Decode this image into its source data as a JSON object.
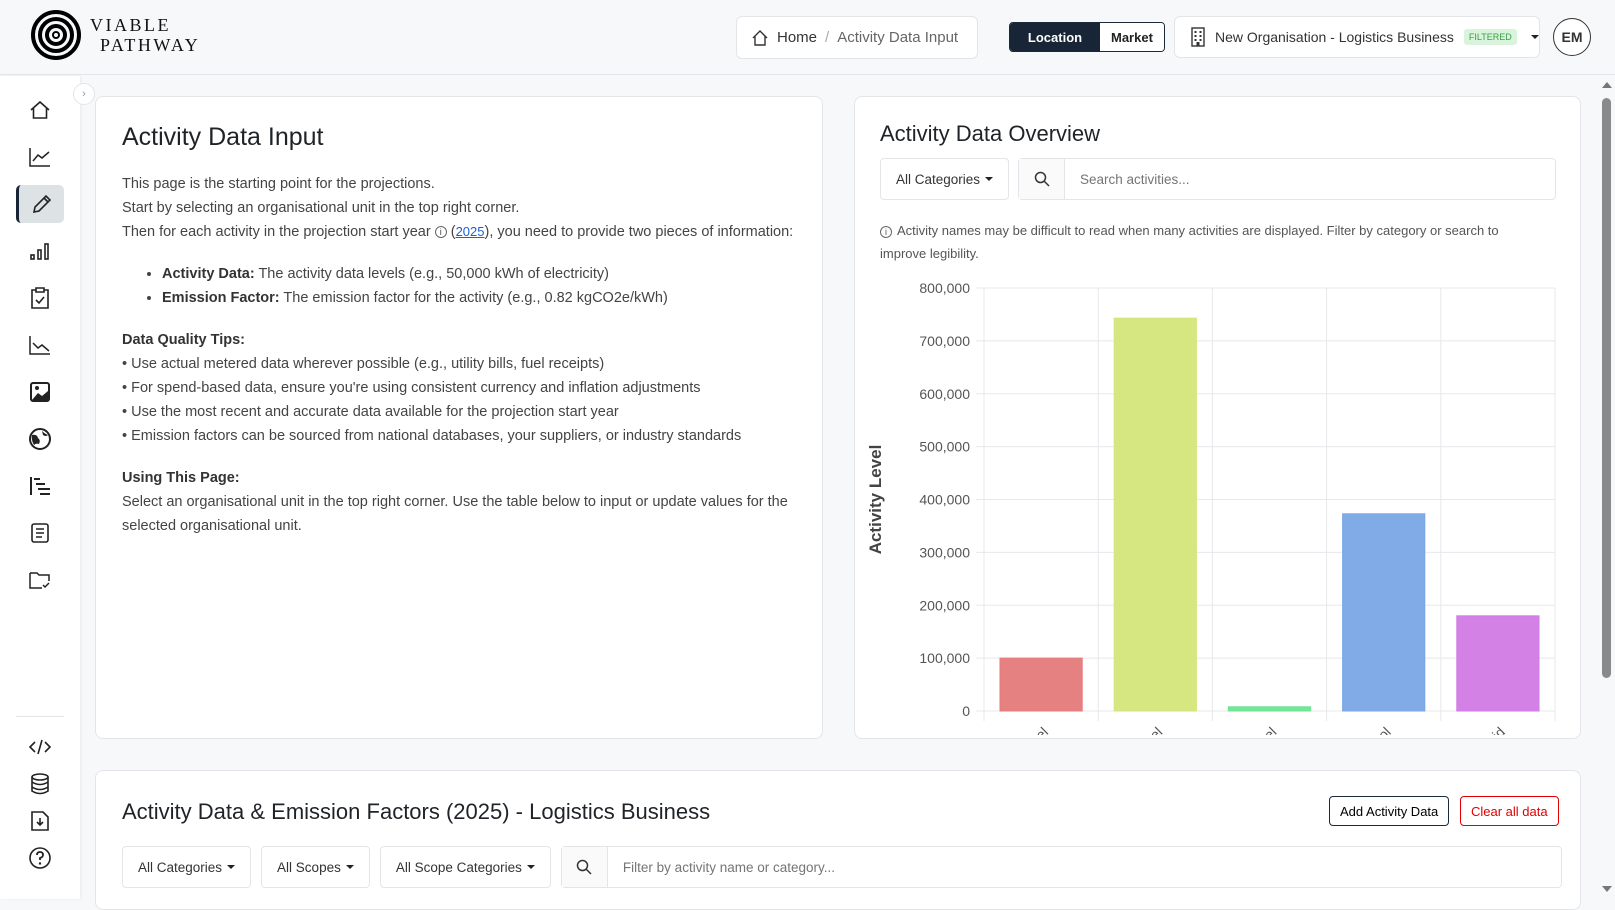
{
  "brand": {
    "line1": "VIABLE",
    "line2": "PATHWAY"
  },
  "breadcrumb": {
    "home": "Home",
    "separator": "/",
    "current": "Activity Data Input"
  },
  "mode_toggle": {
    "location": "Location",
    "market": "Market",
    "active": "Location"
  },
  "org_selector": {
    "name": "New Organisation - Logistics Business",
    "badge": "FILTERED"
  },
  "user": {
    "initials": "EM"
  },
  "sidebar": {
    "items": [
      "home-icon",
      "chart-line-icon",
      "pencil-icon",
      "bar-chart-icon",
      "clipboard-check-icon",
      "chart-down-icon",
      "image-icon",
      "globe-icon",
      "list-indent-icon",
      "document-icon",
      "folder-check-icon"
    ],
    "bottom_items": [
      "code-icon",
      "database-icon",
      "download-file-icon",
      "help-icon"
    ],
    "active": "pencil-icon"
  },
  "intro": {
    "title": "Activity Data Input",
    "line1": "This page is the starting point for the projections.",
    "line2": "Start by selecting an organisational unit in the top right corner.",
    "line3_a": "Then for each activity in the projection start year",
    "line3_year": "2025",
    "line3_b": ", you need to provide two pieces of information:",
    "bullets": [
      {
        "label": "Activity Data:",
        "text": " The activity data levels (e.g., 50,000 kWh of electricity)"
      },
      {
        "label": "Emission Factor:",
        "text": " The emission factor for the activity (e.g., 0.82 kgCO2e/kWh)"
      }
    ],
    "tips_title": "Data Quality Tips:",
    "tips": [
      "• Use actual metered data wherever possible (e.g., utility bills, fuel receipts)",
      "• For spend-based data, ensure you're using consistent currency and inflation adjustments",
      "• Use the most recent and accurate data available for the projection start year",
      "• Emission factors can be sourced from national databases, your suppliers, or industry standards"
    ],
    "using_title": "Using This Page:",
    "using_text": "Select an organisational unit in the top right corner. Use the table below to input or update values for the selected organisational unit."
  },
  "overview": {
    "title": "Activity Data Overview",
    "category_filter": "All Categories",
    "search_placeholder": "Search activities...",
    "note": "Activity names may be difficult to read when many activities are displayed. Filter by category or search to improve legibility."
  },
  "chart_data": {
    "type": "bar",
    "categories": [
      "hgv diesel",
      "car diesel",
      "van diesel",
      "car petrol",
      "electricity grid"
    ],
    "values": [
      100000,
      743000,
      8000,
      373000,
      180000
    ],
    "colors": [
      "#e57a7a",
      "#d4e67a",
      "#6ee495",
      "#7aa6e5",
      "#d27ae5"
    ],
    "ylabel": "Activity Level",
    "xlabel": "",
    "ylim": [
      0,
      800000
    ],
    "yticks": [
      "0",
      "100,000",
      "200,000",
      "300,000",
      "400,000",
      "500,000",
      "600,000",
      "700,000",
      "800,000"
    ],
    "grid": true
  },
  "table_section": {
    "title": "Activity Data & Emission Factors (2025) - Logistics Business",
    "add_button": "Add Activity Data",
    "clear_button": "Clear all data",
    "filters": [
      "All Categories",
      "All Scopes",
      "All Scope Categories"
    ],
    "search_placeholder": "Filter by activity name or category..."
  },
  "colors": {
    "primary": "#172536",
    "danger": "#e00000",
    "link": "#1d5fd0",
    "badge_bg": "#d9f3dc"
  }
}
